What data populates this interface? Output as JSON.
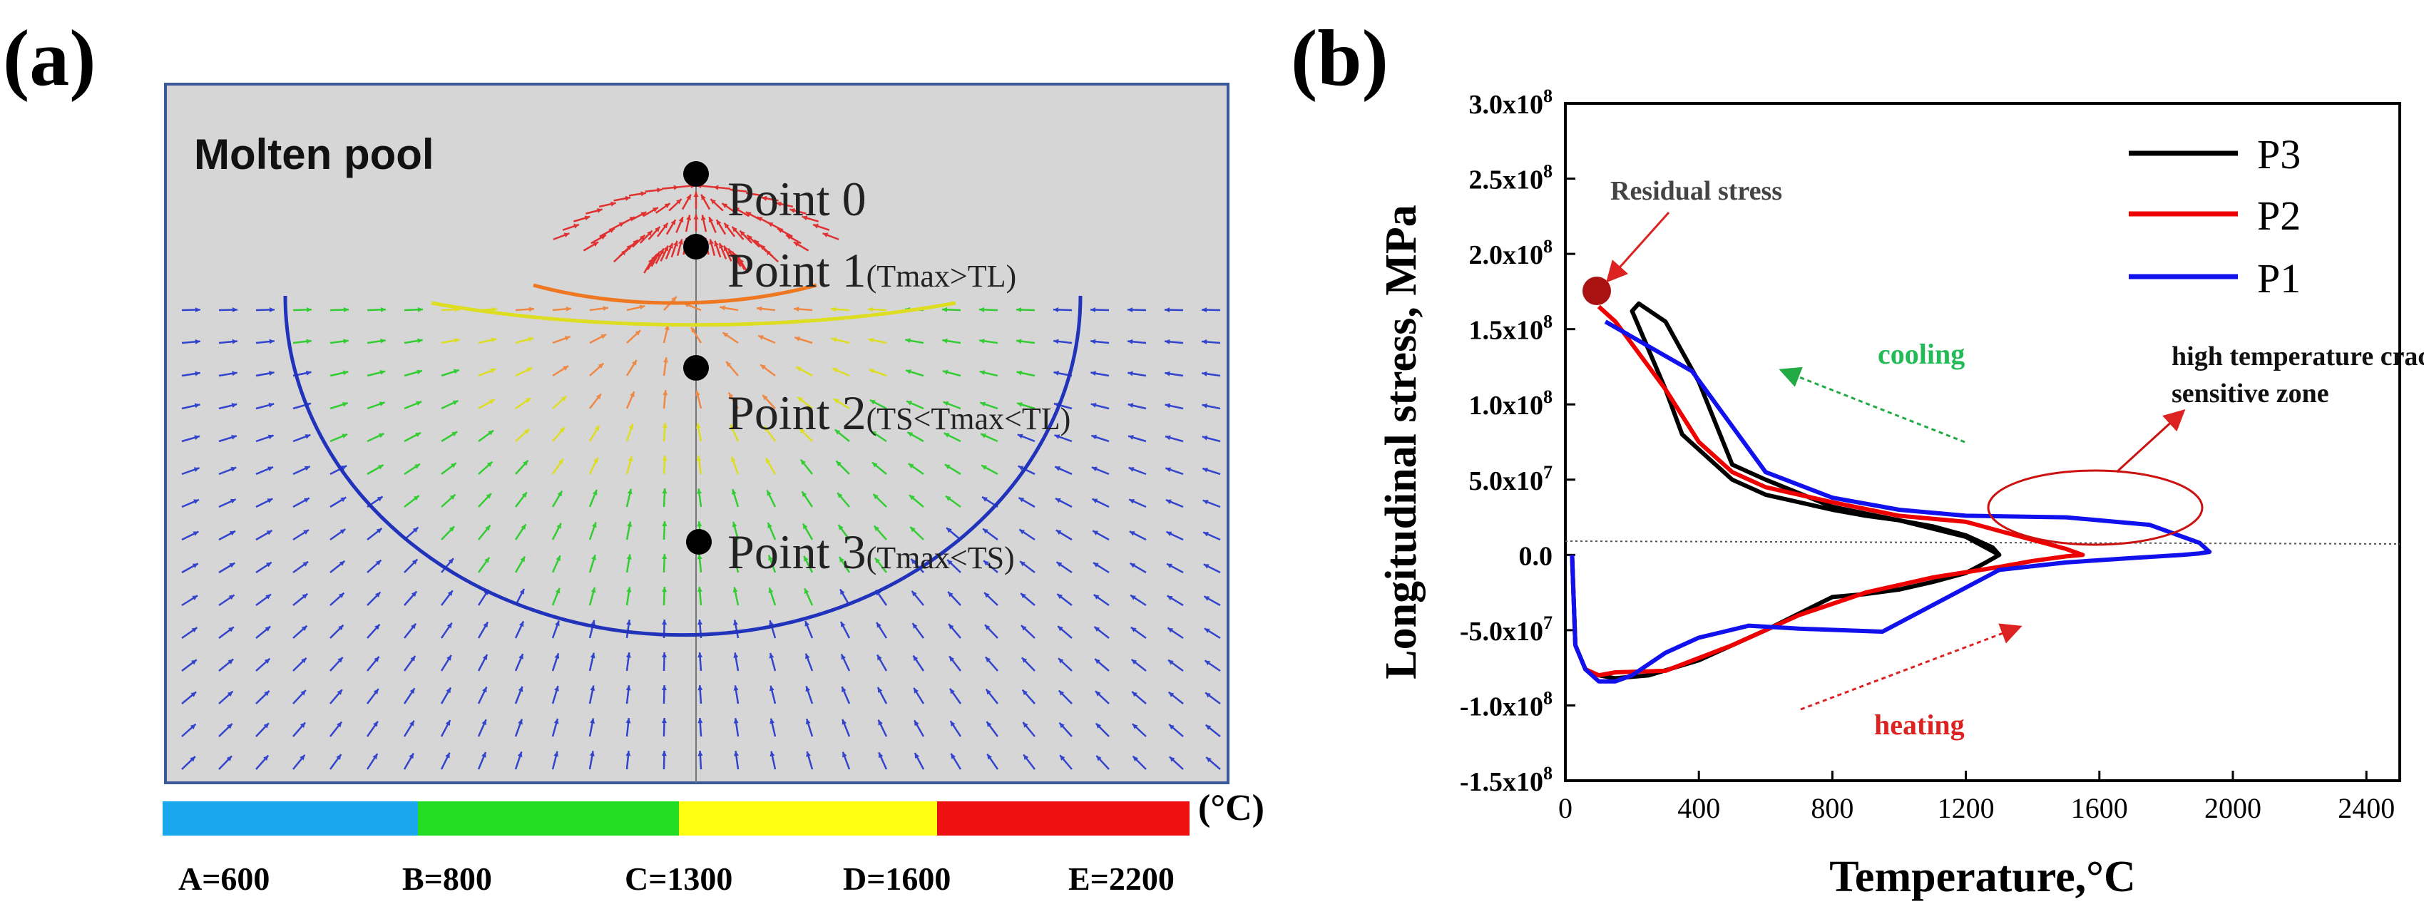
{
  "panel_a": {
    "label": "(a)",
    "title": "Molten pool",
    "points": [
      {
        "name": "Point 0",
        "note": ""
      },
      {
        "name": "Point 1",
        "note": "(Tmax>TL)"
      },
      {
        "name": "Point 2",
        "note": "(TS<Tmax<TL)"
      },
      {
        "name": "Point 3",
        "note": "(Tmax<TS)"
      }
    ],
    "unit": "(°C)",
    "colorbar": [
      {
        "label": "A=600",
        "color": "#1aa7ee"
      },
      {
        "label": "B=800",
        "color": "#22dd22"
      },
      {
        "label": "C=1300",
        "color": "#ffff11"
      },
      {
        "label": "D=1600",
        "color": "#ee1111"
      },
      {
        "label": "E=2200",
        "color": ""
      }
    ],
    "colors": {
      "background": "#d6d6d6",
      "frame": "#3b5998",
      "outer_contour": "#2233bb",
      "mid_contour": "#dddd22",
      "inner_contour": "#ee7722"
    }
  },
  "panel_b": {
    "label": "(b)",
    "annotations": {
      "residual": "Residual stress",
      "cooling": "cooling",
      "heating": "heating",
      "zone_line1": "high temperature crack",
      "zone_line2": "sensitive zone"
    }
  },
  "chart_data": {
    "type": "line",
    "xlabel": "Temperature,°C",
    "ylabel": "Longitudinal  stress, MPa",
    "xlim": [
      0,
      2500
    ],
    "ylim": [
      -150000000.0,
      300000000.0
    ],
    "xticks": [
      0,
      400,
      800,
      1200,
      1600,
      2000,
      2400
    ],
    "yticks": [
      {
        "value": -150000000.0,
        "mant": "-1.5x10",
        "exp": "8"
      },
      {
        "value": -100000000.0,
        "mant": "-1.0x10",
        "exp": "8"
      },
      {
        "value": -50000000.0,
        "mant": "-5.0x10",
        "exp": "7"
      },
      {
        "value": 0,
        "mant": "0.0",
        "exp": ""
      },
      {
        "value": 50000000.0,
        "mant": "5.0x10",
        "exp": "7"
      },
      {
        "value": 100000000.0,
        "mant": "1.0x10",
        "exp": "8"
      },
      {
        "value": 150000000.0,
        "mant": "1.5x10",
        "exp": "8"
      },
      {
        "value": 200000000.0,
        "mant": "2.0x10",
        "exp": "8"
      },
      {
        "value": 250000000.0,
        "mant": "2.5x10",
        "exp": "8"
      },
      {
        "value": 300000000.0,
        "mant": "3.0x10",
        "exp": "8"
      }
    ],
    "legend_position": "top-right",
    "series": [
      {
        "name": "P3",
        "color": "#000000",
        "x": [
          20,
          30,
          60,
          100,
          150,
          250,
          400,
          600,
          800,
          900,
          1000,
          1100,
          1200,
          1260,
          1300,
          1280,
          1200,
          1100,
          1000,
          900,
          800,
          600,
          500,
          350,
          300,
          200,
          220,
          300,
          400,
          500,
          600,
          800,
          1000,
          1200,
          1300
        ],
        "y": [
          0,
          -60000000.0,
          -76000000.0,
          -80000000.0,
          -82000000.0,
          -80000000.0,
          -70000000.0,
          -50000000.0,
          -28000000.0,
          -26000000.0,
          -23000000.0,
          -18000000.0,
          -12000000.0,
          -5000000.0,
          0,
          5000000.0,
          13000000.0,
          19000000.0,
          23000000.0,
          26000000.0,
          30000000.0,
          40000000.0,
          50000000.0,
          80000000.0,
          110000000.0,
          162000000.0,
          167000000.0,
          155000000.0,
          115000000.0,
          60000000.0,
          50000000.0,
          32000000.0,
          23000000.0,
          12000000.0,
          0
        ]
      },
      {
        "name": "P2",
        "color": "#ee0000",
        "x": [
          20,
          30,
          60,
          100,
          150,
          300,
          500,
          700,
          900,
          1100,
          1300,
          1400,
          1500,
          1550,
          1500,
          1400,
          1300,
          1200,
          1000,
          800,
          600,
          500,
          400,
          300,
          150,
          100
        ],
        "y": [
          0,
          -60000000.0,
          -76000000.0,
          -80000000.0,
          -78000000.0,
          -77000000.0,
          -60000000.0,
          -40000000.0,
          -25000000.0,
          -15000000.0,
          -8000000.0,
          -4000000.0,
          -1000000.0,
          0,
          4000000.0,
          10000000.0,
          16000000.0,
          22000000.0,
          26000000.0,
          35000000.0,
          45000000.0,
          55000000.0,
          75000000.0,
          110000000.0,
          155000000.0,
          165000000.0
        ]
      },
      {
        "name": "P1",
        "color": "#1111ee",
        "x": [
          20,
          30,
          60,
          100,
          150,
          200,
          300,
          400,
          550,
          700,
          950,
          1300,
          1500,
          1700,
          1850,
          1900,
          1930,
          1900,
          1850,
          1750,
          1500,
          1200,
          1000,
          800,
          600,
          380,
          120
        ],
        "y": [
          0,
          -60000000.0,
          -76000000.0,
          -84000000.0,
          -84000000.0,
          -80000000.0,
          -65000000.0,
          -55000000.0,
          -47000000.0,
          -49000000.0,
          -51000000.0,
          -10000000.0,
          -5000000.0,
          -2000000.0,
          0,
          1000000.0,
          2000000.0,
          8000000.0,
          12000000.0,
          20000000.0,
          25000000.0,
          26000000.0,
          30000000.0,
          38000000.0,
          55000000.0,
          122000000.0,
          155000000.0
        ]
      }
    ]
  }
}
